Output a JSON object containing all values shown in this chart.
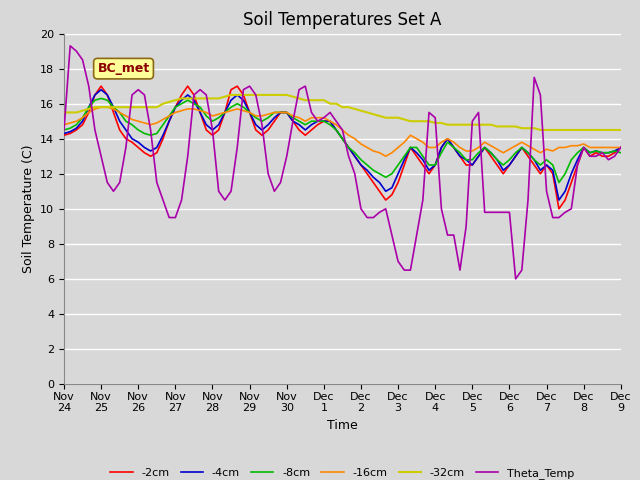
{
  "title": "Soil Temperatures Set A",
  "xlabel": "Time",
  "ylabel": "Soil Temperature (C)",
  "annotation": "BC_met",
  "xlim": [
    0,
    15
  ],
  "ylim": [
    0,
    20
  ],
  "yticks": [
    0,
    2,
    4,
    6,
    8,
    10,
    12,
    14,
    16,
    18,
    20
  ],
  "xtick_labels": [
    "Nov 24",
    "Nov 25",
    "Nov 26",
    "Nov 27",
    "Nov 28",
    "Nov 29",
    "Nov 30",
    "Dec 1",
    "Dec 2",
    "Dec 3",
    "Dec 4",
    "Dec 5",
    "Dec 6",
    "Dec 7",
    "Dec 8",
    "Dec 9"
  ],
  "xtick_positions": [
    0,
    1,
    2,
    3,
    4,
    5,
    6,
    7,
    8,
    9,
    10,
    11,
    12,
    13,
    14,
    15
  ],
  "series": {
    "-2cm": {
      "color": "#ff0000",
      "lw": 1.2
    },
    "-4cm": {
      "color": "#0000cc",
      "lw": 1.2
    },
    "-8cm": {
      "color": "#00bb00",
      "lw": 1.2
    },
    "-16cm": {
      "color": "#ff8800",
      "lw": 1.2
    },
    "-32cm": {
      "color": "#cccc00",
      "lw": 1.5
    },
    "Theta_Temp": {
      "color": "#aa00aa",
      "lw": 1.2
    }
  },
  "background_color": "#d8d8d8",
  "grid_color": "#ffffff",
  "title_fontsize": 12,
  "axis_label_fontsize": 9,
  "tick_fontsize": 8,
  "t": [
    0,
    0.167,
    0.333,
    0.5,
    0.667,
    0.833,
    1.0,
    1.167,
    1.333,
    1.5,
    1.667,
    1.833,
    2.0,
    2.167,
    2.333,
    2.5,
    2.667,
    2.833,
    3.0,
    3.167,
    3.333,
    3.5,
    3.667,
    3.833,
    4.0,
    4.167,
    4.333,
    4.5,
    4.667,
    4.833,
    5.0,
    5.167,
    5.333,
    5.5,
    5.667,
    5.833,
    6.0,
    6.167,
    6.333,
    6.5,
    6.667,
    6.833,
    7.0,
    7.167,
    7.333,
    7.5,
    7.667,
    7.833,
    8.0,
    8.167,
    8.333,
    8.5,
    8.667,
    8.833,
    9.0,
    9.167,
    9.333,
    9.5,
    9.667,
    9.833,
    10.0,
    10.167,
    10.333,
    10.5,
    10.667,
    10.833,
    11.0,
    11.167,
    11.333,
    11.5,
    11.667,
    11.833,
    12.0,
    12.167,
    12.333,
    12.5,
    12.667,
    12.833,
    13.0,
    13.167,
    13.333,
    13.5,
    13.667,
    13.833,
    14.0,
    14.167,
    14.333,
    14.5,
    14.667,
    14.833,
    15.0
  ],
  "d2cm": [
    14.2,
    14.3,
    14.5,
    14.8,
    15.5,
    16.5,
    17.0,
    16.5,
    15.5,
    14.5,
    14.0,
    13.8,
    13.5,
    13.2,
    13.0,
    13.2,
    14.0,
    15.0,
    15.8,
    16.5,
    17.0,
    16.5,
    15.5,
    14.5,
    14.2,
    14.5,
    15.5,
    16.8,
    17.0,
    16.5,
    15.5,
    14.5,
    14.2,
    14.5,
    15.0,
    15.5,
    15.5,
    15.0,
    14.5,
    14.2,
    14.5,
    14.8,
    15.0,
    15.0,
    14.5,
    14.0,
    13.5,
    13.0,
    12.5,
    12.0,
    11.5,
    11.0,
    10.5,
    10.8,
    11.5,
    12.5,
    13.5,
    13.0,
    12.5,
    12.0,
    12.5,
    13.5,
    14.0,
    13.5,
    13.0,
    12.5,
    12.5,
    13.0,
    13.5,
    13.0,
    12.5,
    12.0,
    12.5,
    13.0,
    13.5,
    13.0,
    12.5,
    12.0,
    12.5,
    12.0,
    10.0,
    10.5,
    11.5,
    12.5,
    13.5,
    13.0,
    13.2,
    13.0,
    13.0,
    13.2,
    13.5
  ],
  "d4cm": [
    14.3,
    14.4,
    14.6,
    15.0,
    15.8,
    16.5,
    16.8,
    16.5,
    15.8,
    15.0,
    14.5,
    14.0,
    13.8,
    13.5,
    13.3,
    13.5,
    14.2,
    15.0,
    15.8,
    16.2,
    16.5,
    16.2,
    15.5,
    14.8,
    14.5,
    14.8,
    15.5,
    16.2,
    16.5,
    16.2,
    15.5,
    14.8,
    14.5,
    14.8,
    15.2,
    15.5,
    15.5,
    15.0,
    14.8,
    14.5,
    14.8,
    15.0,
    15.0,
    15.0,
    14.5,
    14.0,
    13.5,
    13.0,
    12.5,
    12.2,
    11.8,
    11.5,
    11.0,
    11.2,
    12.0,
    12.8,
    13.5,
    13.2,
    12.8,
    12.2,
    12.5,
    13.5,
    14.0,
    13.5,
    13.0,
    12.8,
    12.5,
    13.0,
    13.5,
    13.2,
    12.8,
    12.2,
    12.5,
    13.0,
    13.5,
    13.2,
    12.8,
    12.2,
    12.5,
    12.2,
    10.5,
    11.0,
    12.0,
    12.8,
    13.5,
    13.2,
    13.3,
    13.2,
    13.2,
    13.3,
    13.5
  ],
  "d8cm": [
    14.5,
    14.6,
    14.8,
    15.2,
    15.8,
    16.2,
    16.3,
    16.2,
    15.8,
    15.5,
    15.0,
    14.8,
    14.5,
    14.3,
    14.2,
    14.3,
    14.8,
    15.3,
    15.8,
    16.0,
    16.2,
    16.0,
    15.8,
    15.3,
    15.0,
    15.2,
    15.5,
    15.8,
    16.0,
    15.8,
    15.5,
    15.2,
    15.0,
    15.2,
    15.5,
    15.5,
    15.5,
    15.2,
    15.0,
    14.8,
    15.0,
    15.0,
    15.0,
    14.8,
    14.5,
    14.0,
    13.5,
    13.2,
    12.8,
    12.5,
    12.2,
    12.0,
    11.8,
    12.0,
    12.5,
    13.0,
    13.5,
    13.5,
    13.0,
    12.5,
    12.5,
    13.2,
    13.8,
    13.5,
    13.2,
    12.8,
    12.8,
    13.2,
    13.5,
    13.2,
    12.8,
    12.5,
    12.8,
    13.2,
    13.5,
    13.2,
    12.8,
    12.5,
    12.8,
    12.5,
    11.5,
    12.0,
    12.8,
    13.2,
    13.5,
    13.2,
    13.3,
    13.2,
    13.2,
    13.3,
    13.2
  ],
  "d16cm": [
    14.8,
    14.9,
    15.0,
    15.2,
    15.5,
    15.7,
    15.8,
    15.8,
    15.7,
    15.5,
    15.3,
    15.1,
    15.0,
    14.9,
    14.8,
    14.9,
    15.1,
    15.3,
    15.5,
    15.6,
    15.7,
    15.7,
    15.6,
    15.5,
    15.3,
    15.4,
    15.5,
    15.6,
    15.7,
    15.6,
    15.5,
    15.3,
    15.3,
    15.4,
    15.5,
    15.5,
    15.5,
    15.3,
    15.2,
    15.0,
    15.2,
    15.2,
    15.2,
    15.0,
    14.8,
    14.5,
    14.2,
    14.0,
    13.7,
    13.5,
    13.3,
    13.2,
    13.0,
    13.2,
    13.5,
    13.8,
    14.2,
    14.0,
    13.8,
    13.5,
    13.5,
    13.8,
    14.0,
    13.8,
    13.5,
    13.3,
    13.3,
    13.5,
    13.8,
    13.6,
    13.4,
    13.2,
    13.4,
    13.6,
    13.8,
    13.6,
    13.4,
    13.2,
    13.4,
    13.3,
    13.5,
    13.5,
    13.6,
    13.6,
    13.7,
    13.5,
    13.5,
    13.5,
    13.5,
    13.5,
    13.5
  ],
  "d32cm": [
    15.5,
    15.5,
    15.5,
    15.6,
    15.7,
    15.8,
    15.8,
    15.8,
    15.8,
    15.8,
    15.8,
    15.8,
    15.8,
    15.8,
    15.8,
    15.8,
    16.0,
    16.1,
    16.2,
    16.3,
    16.3,
    16.3,
    16.3,
    16.3,
    16.3,
    16.3,
    16.4,
    16.5,
    16.5,
    16.5,
    16.5,
    16.5,
    16.5,
    16.5,
    16.5,
    16.5,
    16.5,
    16.4,
    16.3,
    16.2,
    16.2,
    16.2,
    16.2,
    16.0,
    16.0,
    15.8,
    15.8,
    15.7,
    15.6,
    15.5,
    15.4,
    15.3,
    15.2,
    15.2,
    15.2,
    15.1,
    15.0,
    15.0,
    15.0,
    15.0,
    14.9,
    14.9,
    14.8,
    14.8,
    14.8,
    14.8,
    14.8,
    14.8,
    14.8,
    14.8,
    14.7,
    14.7,
    14.7,
    14.7,
    14.6,
    14.6,
    14.6,
    14.5,
    14.5,
    14.5,
    14.5,
    14.5,
    14.5,
    14.5,
    14.5,
    14.5,
    14.5,
    14.5,
    14.5,
    14.5,
    14.5
  ],
  "theta": [
    14.5,
    19.3,
    19.0,
    18.5,
    17.0,
    14.5,
    13.0,
    11.5,
    11.0,
    11.5,
    13.5,
    16.5,
    16.8,
    16.5,
    14.5,
    11.5,
    10.5,
    9.5,
    9.5,
    10.5,
    13.0,
    16.5,
    16.8,
    16.5,
    14.5,
    11.0,
    10.5,
    11.0,
    13.5,
    16.8,
    17.0,
    16.5,
    14.8,
    12.0,
    11.0,
    11.5,
    13.0,
    15.0,
    16.8,
    17.0,
    15.5,
    15.0,
    15.2,
    15.5,
    15.0,
    14.5,
    13.0,
    12.0,
    10.0,
    9.5,
    9.5,
    9.8,
    10.0,
    8.5,
    7.0,
    6.5,
    6.5,
    8.5,
    10.5,
    15.5,
    15.2,
    10.0,
    8.5,
    8.5,
    6.5,
    9.0,
    15.0,
    15.5,
    9.8,
    9.8,
    9.8,
    9.8,
    9.8,
    6.0,
    6.5,
    10.5,
    17.5,
    16.5,
    11.0,
    9.5,
    9.5,
    9.8,
    10.0,
    12.5,
    13.5,
    13.0,
    13.0,
    13.2,
    12.8,
    13.0,
    13.5
  ]
}
